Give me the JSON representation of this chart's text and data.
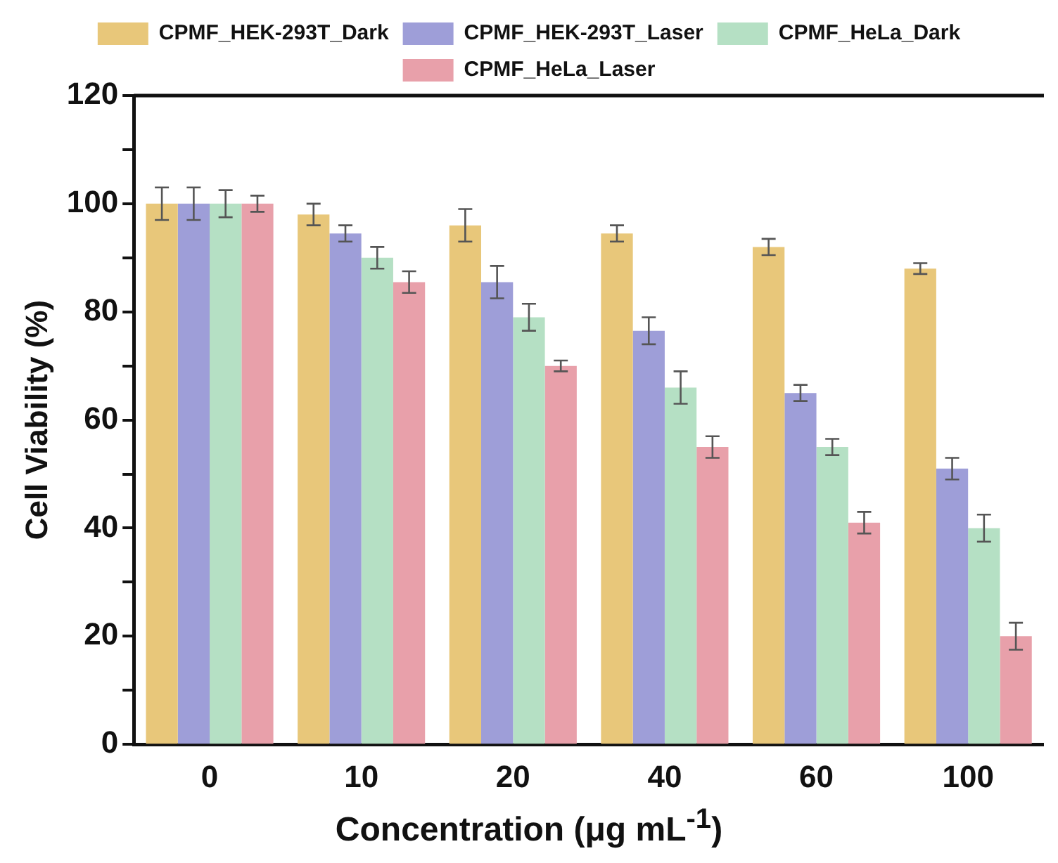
{
  "chart_data": {
    "type": "bar",
    "xlabel": "Concentration (μg mL$^{-1}$)",
    "ylabel": "Cell Viability (%)",
    "categories": [
      "0",
      "10",
      "20",
      "40",
      "60",
      "100"
    ],
    "series": [
      {
        "name": "CPMF_HEK-293T_Dark",
        "color": "#e8c77a",
        "values": [
          100,
          98,
          96,
          94.5,
          92,
          88
        ],
        "errors": [
          3,
          2,
          3,
          1.5,
          1.5,
          1
        ]
      },
      {
        "name": "CPMF_HEK-293T_Laser",
        "color": "#9e9ed8",
        "values": [
          100,
          94.5,
          85.5,
          76.5,
          65,
          51
        ],
        "errors": [
          3,
          1.5,
          3,
          2.5,
          1.5,
          2
        ]
      },
      {
        "name": "CPMF_HeLa_Dark",
        "color": "#b5e0c4",
        "values": [
          100,
          90,
          79,
          66,
          55,
          40
        ],
        "errors": [
          2.5,
          2,
          2.5,
          3,
          1.5,
          2.5
        ]
      },
      {
        "name": "CPMF_HeLa_Laser",
        "color": "#e8a0aa",
        "values": [
          100,
          85.5,
          70,
          55,
          41,
          20
        ],
        "errors": [
          1.5,
          2,
          1,
          2,
          2,
          2.5
        ]
      }
    ],
    "ylim": [
      0,
      120
    ],
    "yticks": [
      0,
      {
        "value": 10,
        "label": null
      },
      20,
      {
        "value": 30,
        "label": null
      },
      40,
      {
        "value": 50,
        "label": null
      },
      60,
      {
        "value": 70,
        "label": null
      },
      80,
      {
        "value": 90,
        "label": null
      },
      100,
      {
        "value": 110,
        "label": null
      },
      120
    ],
    "grid": false,
    "legend": "top"
  }
}
